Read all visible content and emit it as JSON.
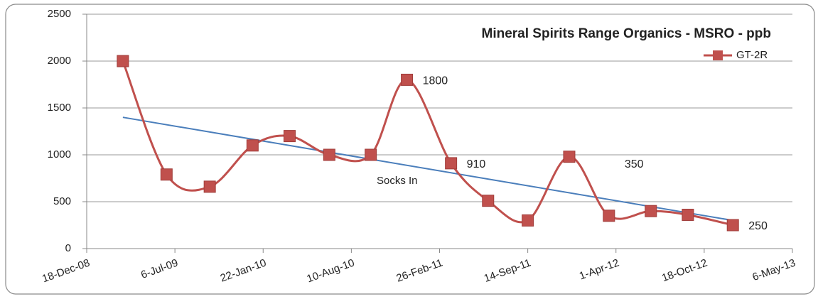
{
  "chart_data": {
    "type": "line",
    "title": "Mineral Spirits Range Organics - MSRO - ppb",
    "annotations": [
      "Socks In"
    ],
    "x": [
      "2009-03-10",
      "2009-06-17",
      "2009-09-23",
      "2009-12-29",
      "2010-03-23",
      "2010-06-21",
      "2010-09-23",
      "2010-12-14",
      "2011-03-24",
      "2011-06-16",
      "2011-09-14",
      "2011-12-17",
      "2012-03-16",
      "2012-06-19",
      "2012-09-11",
      "2012-12-22"
    ],
    "series": [
      {
        "name": "GT-2R",
        "color": "#c0504d",
        "values": [
          2000,
          790,
          660,
          1100,
          1200,
          1000,
          1000,
          1800,
          910,
          510,
          300,
          980,
          350,
          400,
          360,
          250
        ],
        "value_labels": [
          null,
          null,
          null,
          null,
          null,
          null,
          null,
          "1800",
          "910",
          null,
          null,
          null,
          "350",
          null,
          null,
          "250"
        ]
      }
    ],
    "trendline": {
      "color": "#4a7ebb",
      "x": [
        "2009-03-10",
        "2012-12-22"
      ],
      "values": [
        1400,
        300
      ]
    },
    "xlim": [
      "2008-12-18",
      "2013-05-06"
    ],
    "xticks": [
      {
        "value": "2008-12-18",
        "label": "18-Dec-08"
      },
      {
        "value": "2009-07-06",
        "label": "6-Jul-09"
      },
      {
        "value": "2010-01-22",
        "label": "22-Jan-10"
      },
      {
        "value": "2010-08-10",
        "label": "10-Aug-10"
      },
      {
        "value": "2011-02-26",
        "label": "26-Feb-11"
      },
      {
        "value": "2011-09-14",
        "label": "14-Sep-11"
      },
      {
        "value": "2012-04-01",
        "label": "1-Apr-12"
      },
      {
        "value": "2012-10-18",
        "label": "18-Oct-12"
      },
      {
        "value": "2013-05-06",
        "label": "6-May-13"
      }
    ],
    "ylim": [
      0,
      2500
    ],
    "yticks": [
      0,
      500,
      1000,
      1500,
      2000,
      2500
    ],
    "grid": true,
    "legend": "upper right"
  }
}
